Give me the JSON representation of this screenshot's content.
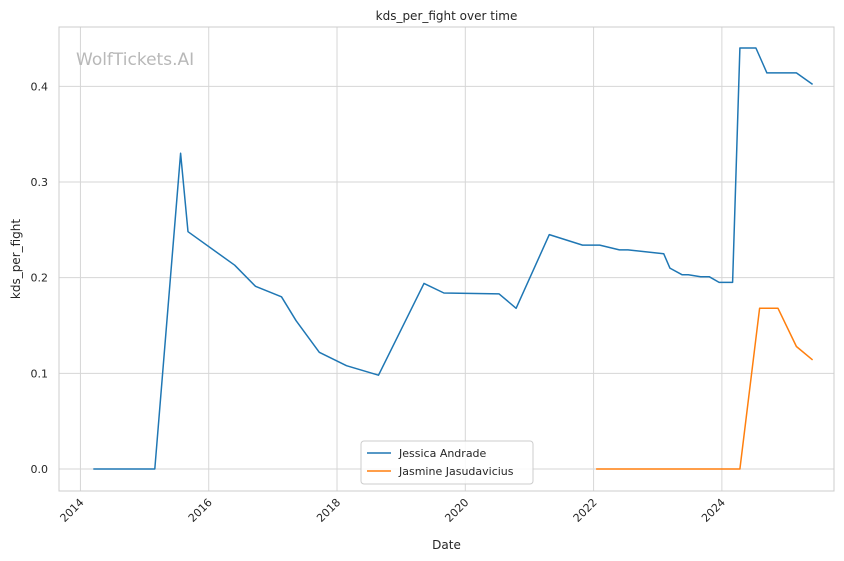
{
  "chart_data": {
    "type": "line",
    "title": "kds_per_fight over time",
    "xlabel": "Date",
    "ylabel": "kds_per_fight",
    "watermark": "WolfTickets.AI",
    "x_range": [
      "2013-09-01",
      "2025-10-01"
    ],
    "ylim": [
      -0.023,
      0.462
    ],
    "x_ticks": [
      "2014",
      "2016",
      "2018",
      "2020",
      "2022",
      "2024"
    ],
    "y_ticks": [
      "0.0",
      "0.1",
      "0.2",
      "0.3",
      "0.4"
    ],
    "grid": true,
    "legend_position": "lower-center",
    "series": [
      {
        "name": "Jessica Andrade",
        "color": "#1f77b4",
        "points": [
          [
            "2014-03-15",
            0.0
          ],
          [
            "2015-02-28",
            0.0
          ],
          [
            "2015-07-25",
            0.33
          ],
          [
            "2015-09-05",
            0.248
          ],
          [
            "2016-05-28",
            0.213
          ],
          [
            "2016-09-24",
            0.191
          ],
          [
            "2017-02-19",
            0.18
          ],
          [
            "2017-05-13",
            0.155
          ],
          [
            "2017-09-22",
            0.122
          ],
          [
            "2018-02-24",
            0.108
          ],
          [
            "2018-08-25",
            0.098
          ],
          [
            "2019-05-11",
            0.194
          ],
          [
            "2019-09-01",
            0.184
          ],
          [
            "2020-07-12",
            0.183
          ],
          [
            "2020-10-17",
            0.168
          ],
          [
            "2021-04-24",
            0.245
          ],
          [
            "2021-10-30",
            0.234
          ],
          [
            "2022-02-05",
            0.234
          ],
          [
            "2022-05-28",
            0.229
          ],
          [
            "2022-07-16",
            0.229
          ],
          [
            "2023-02-04",
            0.225
          ],
          [
            "2023-03-11",
            0.21
          ],
          [
            "2023-05-20",
            0.203
          ],
          [
            "2023-06-24",
            0.203
          ],
          [
            "2023-09-02",
            0.201
          ],
          [
            "2023-10-21",
            0.201
          ],
          [
            "2023-12-16",
            0.195
          ],
          [
            "2024-03-02",
            0.195
          ],
          [
            "2024-04-13",
            0.44
          ],
          [
            "2024-07-13",
            0.44
          ],
          [
            "2024-09-14",
            0.414
          ],
          [
            "2025-03-01",
            0.414
          ],
          [
            "2025-06-01",
            0.402
          ]
        ]
      },
      {
        "name": "Jasmine Jasudavicius",
        "color": "#ff7f0e",
        "points": [
          [
            "2022-01-15",
            0.0
          ],
          [
            "2024-04-13",
            0.0
          ],
          [
            "2024-08-03",
            0.168
          ],
          [
            "2024-11-16",
            0.168
          ],
          [
            "2025-03-01",
            0.128
          ],
          [
            "2025-06-01",
            0.114
          ]
        ]
      }
    ]
  }
}
